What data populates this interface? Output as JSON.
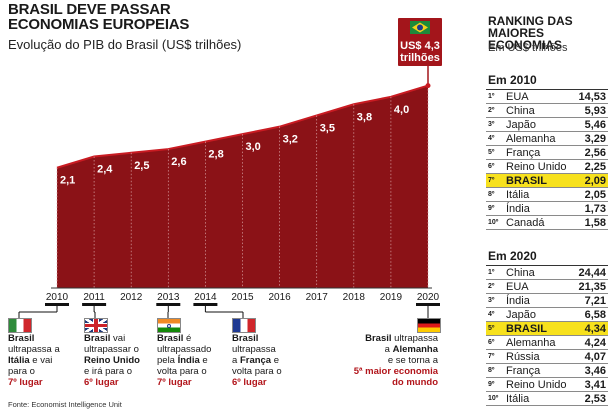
{
  "header": {
    "title_line1": "BRASIL DEVE PASSAR",
    "title_line2": "ECONOMIAS EUROPEIAS",
    "subtitle": "Evolução do PIB do Brasil (US$ trilhões)"
  },
  "chart_data": {
    "type": "area",
    "title": "BRASIL DEVE PASSAR ECONOMIAS EUROPEIAS",
    "subtitle": "Evolução do PIB do Brasil (US$ trilhões)",
    "x": [
      "2010",
      "2011",
      "2012",
      "2013",
      "2014",
      "2015",
      "2016",
      "2017",
      "2018",
      "2019",
      "2020"
    ],
    "values": [
      2.1,
      2.4,
      2.5,
      2.6,
      2.8,
      3.0,
      3.2,
      3.5,
      3.8,
      4.0,
      4.3
    ],
    "labels": [
      "2,1",
      "2,4",
      "2,5",
      "2,6",
      "2,8",
      "3,0",
      "3,2",
      "3,5",
      "3,8",
      "4,0"
    ],
    "final_label_line1": "US$ 4,3",
    "final_label_line2": "trilhões",
    "ylim": [
      0,
      4.6
    ],
    "grid": false,
    "colors": {
      "area": "#8b1217",
      "area_top": "#a3141b",
      "line": "#c91b22",
      "label": "#ffffff"
    }
  },
  "flags": {
    "italy": {
      "colors": [
        "#2e8b3a",
        "#ffffff",
        "#d0262b"
      ]
    },
    "uk": {
      "colors": [
        "#1f3a7a",
        "#ffffff",
        "#cc2229"
      ]
    },
    "india": {
      "colors": [
        "#f08a24",
        "#ffffff",
        "#138808"
      ]
    },
    "france": {
      "colors": [
        "#1f3a93",
        "#ffffff",
        "#d0262b"
      ]
    },
    "germany": {
      "colors": [
        "#000000",
        "#dd1a1a",
        "#ffcc00"
      ]
    },
    "brazil": {
      "colors": [
        "#1f8a3a",
        "#f6d21b",
        "#1d3c8c"
      ]
    }
  },
  "notes": {
    "italy": {
      "l1": "Brasil",
      "l2": "ultrapassa a",
      "bold": "Itália",
      "l3": " e vai",
      "l4": "para o",
      "red": "7º lugar"
    },
    "uk": {
      "l1": "Brasil",
      "l1b": " vai",
      "l2": "ultrapassar o",
      "bold": "Reino Unido",
      "l3": "e irá para o",
      "red": "6º lugar"
    },
    "india": {
      "l1": "Brasil",
      "l1b": " é",
      "l2": "ultrapassado",
      "l3": "pela ",
      "bold": "Índia",
      "l3b": " e",
      "l4": "volta para o",
      "red": "7º lugar"
    },
    "france": {
      "l1": "Brasil",
      "l2": "ultrapassa",
      "l3": "a ",
      "bold": "França",
      "l3b": " e",
      "l4": "volta para o",
      "red": "6º lugar"
    },
    "germany": {
      "l1": "Brasil",
      "l1b": " ultrapassa",
      "l2": "a ",
      "bold": "Alemanha",
      "l3": "e se torna a",
      "red1": "5ª maior economia",
      "red2": "do mundo"
    }
  },
  "ranking": {
    "title_line1": "RANKING DAS",
    "title_line2": "MAIORES ECONOMIAS",
    "subtitle": "Em US$ trilhões",
    "highlight_color": "#f7e11d",
    "y2010": {
      "label": "Em 2010",
      "rows": [
        {
          "pos": "1º",
          "country": "EUA",
          "value": "14,53"
        },
        {
          "pos": "2º",
          "country": "China",
          "value": "5,93"
        },
        {
          "pos": "3º",
          "country": "Japão",
          "value": "5,46"
        },
        {
          "pos": "4º",
          "country": "Alemanha",
          "value": "3,29"
        },
        {
          "pos": "5º",
          "country": "França",
          "value": "2,56"
        },
        {
          "pos": "6º",
          "country": "Reino Unido",
          "value": "2,25"
        },
        {
          "pos": "7º",
          "country": "BRASIL",
          "value": "2,09"
        },
        {
          "pos": "8º",
          "country": "Itália",
          "value": "2,05"
        },
        {
          "pos": "9º",
          "country": "Índia",
          "value": "1,73"
        },
        {
          "pos": "10º",
          "country": "Canadá",
          "value": "1,58"
        }
      ]
    },
    "y2020": {
      "label": "Em 2020",
      "rows": [
        {
          "pos": "1º",
          "country": "China",
          "value": "24,44"
        },
        {
          "pos": "2º",
          "country": "EUA",
          "value": "21,35"
        },
        {
          "pos": "3º",
          "country": "Índia",
          "value": "7,21"
        },
        {
          "pos": "4º",
          "country": "Japão",
          "value": "6,58"
        },
        {
          "pos": "5º",
          "country": "BRASIL",
          "value": "4,34"
        },
        {
          "pos": "6º",
          "country": "Alemanha",
          "value": "4,24"
        },
        {
          "pos": "7º",
          "country": "Rússia",
          "value": "4,07"
        },
        {
          "pos": "8º",
          "country": "França",
          "value": "3,46"
        },
        {
          "pos": "9º",
          "country": "Reino Unido",
          "value": "3,41"
        },
        {
          "pos": "10º",
          "country": "Itália",
          "value": "2,53"
        }
      ]
    }
  },
  "source": "Fonte: Economist Intelligence Unit"
}
